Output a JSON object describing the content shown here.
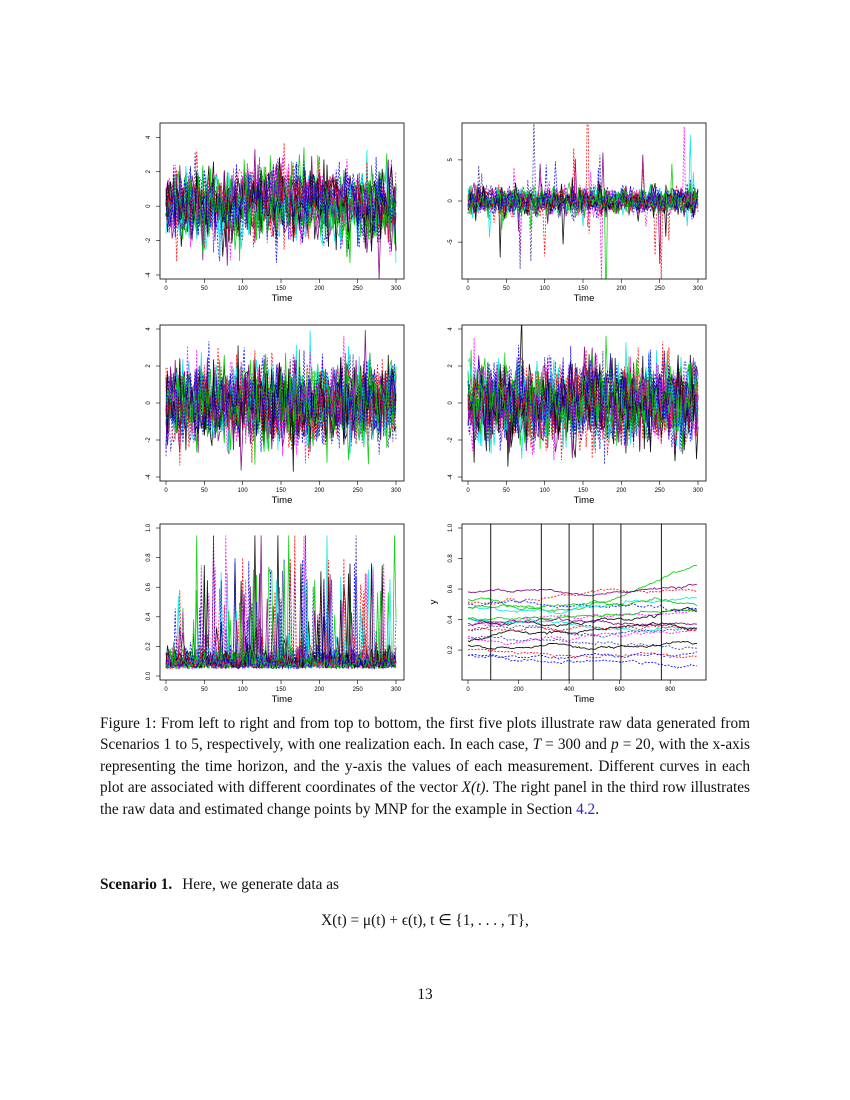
{
  "chart_data": [
    {
      "type": "line",
      "xlabel": "Time",
      "ylabel": "",
      "xlim": [
        0,
        300
      ],
      "ylim": [
        -4,
        4.6
      ],
      "xticks": [
        0,
        50,
        100,
        150,
        200,
        250,
        300
      ],
      "yticks": [
        -4,
        -2,
        0,
        2,
        4
      ],
      "series_count": 20,
      "style": "noisy multi-colored dashed lines"
    },
    {
      "type": "line",
      "xlabel": "Time",
      "ylabel": "",
      "xlim": [
        0,
        300
      ],
      "ylim": [
        -9,
        9
      ],
      "xticks": [
        0,
        50,
        100,
        150,
        200,
        250,
        300
      ],
      "yticks": [
        -5,
        0,
        5
      ],
      "series_count": 20,
      "style": "noisy multi-colored dashed lines with spikes"
    },
    {
      "type": "line",
      "xlabel": "Time",
      "ylabel": "",
      "xlim": [
        0,
        300
      ],
      "ylim": [
        -4,
        4
      ],
      "xticks": [
        0,
        50,
        100,
        150,
        200,
        250,
        300
      ],
      "yticks": [
        -4,
        -2,
        0,
        2,
        4
      ],
      "series_count": 20,
      "style": "noisy multi-colored dashed lines"
    },
    {
      "type": "line",
      "xlabel": "Time",
      "ylabel": "",
      "xlim": [
        0,
        300
      ],
      "ylim": [
        -4,
        4
      ],
      "xticks": [
        0,
        50,
        100,
        150,
        200,
        250,
        300
      ],
      "yticks": [
        -4,
        -2,
        0,
        2,
        4
      ],
      "series_count": 20,
      "style": "noisy multi-colored dashed lines"
    },
    {
      "type": "line",
      "xlabel": "Time",
      "ylabel": "",
      "xlim": [
        0,
        300
      ],
      "ylim": [
        0,
        1
      ],
      "xticks": [
        0,
        50,
        100,
        150,
        200,
        250,
        300
      ],
      "yticks": [
        "0.0",
        "0.2",
        "0.4",
        "0.6",
        "0.8",
        "1.0"
      ],
      "series_count": 20,
      "style": "positive spiky multi-colored lines"
    },
    {
      "type": "line",
      "xlabel": "Time",
      "ylabel": "y",
      "xlim": [
        0,
        910
      ],
      "ylim": [
        0.03,
        1.0
      ],
      "xticks": [
        0,
        200,
        400,
        600,
        800
      ],
      "yticks": [
        "0.2",
        "0.4",
        "0.6",
        "0.8",
        "1.0"
      ],
      "series_count": 20,
      "change_points": [
        90,
        290,
        400,
        495,
        605,
        765
      ],
      "style": "smooth multi-colored lines with vertical change-point lines"
    }
  ],
  "caption": {
    "p1": "Figure 1:   From left to right and from top to bottom, the first five plots illustrate raw data generated from Scenarios 1 to 5, respectively, with one realization each. In each case, ",
    "T": "T",
    "p2": " = 300 and ",
    "p": "p",
    "p3": " = 20, with the x-axis representing the time horizon, and the y-axis the values of each measurement. Different curves in each plot are associated with different coordinates of the vector ",
    "Xt": "X(t)",
    "p4": ". The right panel in the third row illustrates the raw data and estimated change points by MNP for the example in Section ",
    "ref": "4.2",
    "p5": "."
  },
  "scenario": {
    "label": "Scenario 1.",
    "text": "Here, we generate data as"
  },
  "equation": "X(t) = μ(t) + ϵ(t),    t ∈ {1, . . . , T},",
  "page_number": "13",
  "colors": [
    "#000000",
    "#ff0000",
    "#00cc00",
    "#0000ff",
    "#00e5e5",
    "#ff00ff",
    "#800080",
    "#333399"
  ]
}
